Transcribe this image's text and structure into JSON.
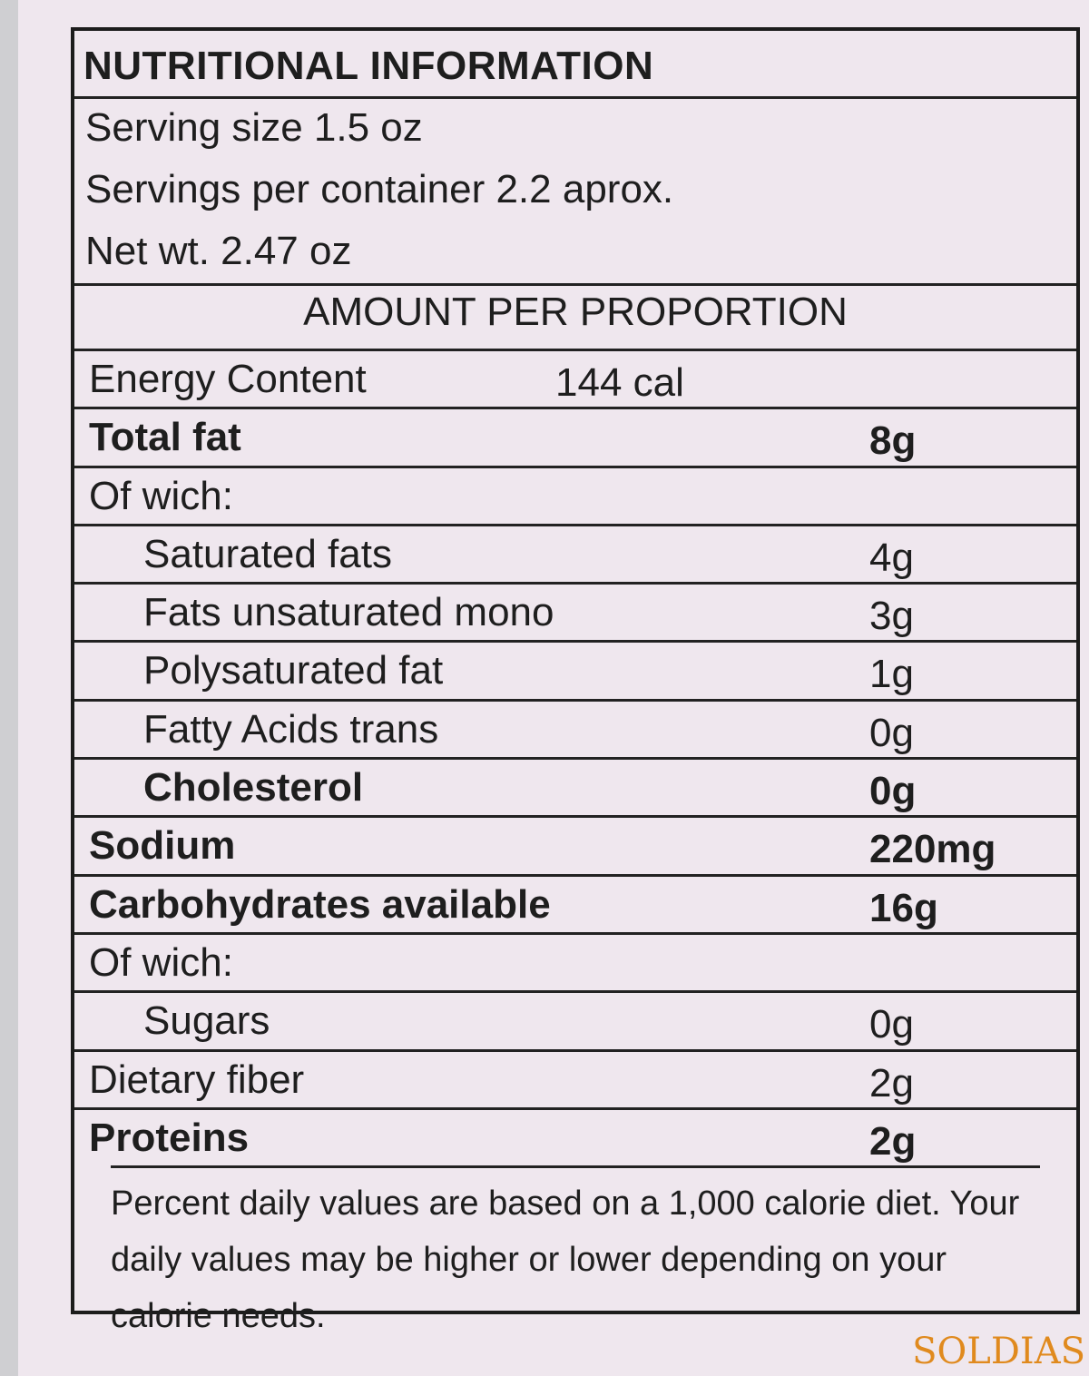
{
  "header": {
    "title": "NUTRITIONAL INFORMATION",
    "serving_size": "Serving  size 1.5 oz",
    "servings_per_container": "Servings per container 2.2 aprox.",
    "net_weight": "Net wt. 2.47 oz"
  },
  "amount_header": "AMOUNT PER PROPORTION",
  "table": {
    "rows": [
      {
        "label": "Energy Content",
        "value": "144 cal",
        "bold": false,
        "indent": false
      },
      {
        "label": "Total fat",
        "value": "8g",
        "bold": true,
        "indent": false
      },
      {
        "label": "Of wich:",
        "value": null,
        "bold": false,
        "indent": false
      },
      {
        "label": "Saturated fats",
        "value": "4g",
        "bold": false,
        "indent": true
      },
      {
        "label": "Fats unsaturated mono",
        "value": "3g",
        "bold": false,
        "indent": true
      },
      {
        "label": "Polysaturated fat",
        "value": "1g",
        "bold": false,
        "indent": true
      },
      {
        "label": "Fatty Acids trans",
        "value": "0g",
        "bold": false,
        "indent": true
      },
      {
        "label": "Cholesterol",
        "value": "0g",
        "bold": true,
        "indent": true
      },
      {
        "label": "Sodium",
        "value": "220mg",
        "bold": true,
        "indent": false
      },
      {
        "label": "Carbohydrates available",
        "value": "16g",
        "bold": true,
        "indent": false
      },
      {
        "label": "Of wich:",
        "value": null,
        "bold": false,
        "indent": false
      },
      {
        "label": "Sugars",
        "value": "0g",
        "bold": false,
        "indent": true
      },
      {
        "label": "Dietary fiber",
        "value": "2g",
        "bold": false,
        "indent": false
      },
      {
        "label": "Proteins",
        "value": "2g",
        "bold": true,
        "indent": false
      }
    ]
  },
  "footnote": "Percent daily values are based on a 1,000 calorie diet. Your daily values may be higher or lower depending on your calorie needs.",
  "logo": "SOLDIAS"
}
